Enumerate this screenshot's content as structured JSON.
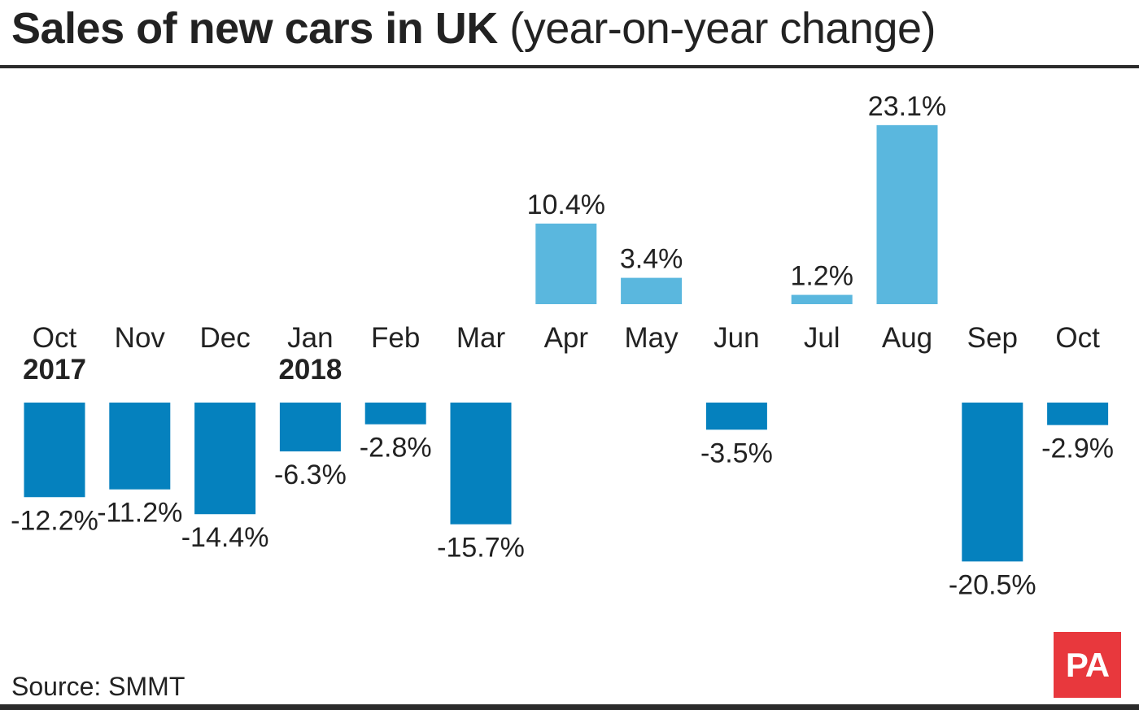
{
  "title": {
    "bold": "Sales of new cars in UK",
    "light": "(year-on-year change)"
  },
  "source": "Source: SMMT",
  "logo_text": "PA",
  "colors": {
    "positive": "#5ab7de",
    "negative": "#0581be",
    "text": "#222222",
    "logo": "#e8383d"
  },
  "chart_data": {
    "type": "bar",
    "title": "Sales of new cars in UK (year-on-year change)",
    "categories": [
      "Oct",
      "Nov",
      "Dec",
      "Jan",
      "Feb",
      "Mar",
      "Apr",
      "May",
      "Jun",
      "Jul",
      "Aug",
      "Sep",
      "Oct"
    ],
    "year_labels": [
      "2017",
      "",
      "",
      "2018",
      "",
      "",
      "",
      "",
      "",
      "",
      "",
      "",
      ""
    ],
    "values": [
      -12.2,
      -11.2,
      -14.4,
      -6.3,
      -2.8,
      -15.7,
      10.4,
      3.4,
      -3.5,
      1.2,
      23.1,
      -20.5,
      -2.9
    ],
    "data_labels": [
      "-12.2%",
      "-11.2%",
      "-14.4%",
      "-6.3%",
      "-2.8%",
      "-15.7%",
      "10.4%",
      "3.4%",
      "-3.5%",
      "1.2%",
      "23.1%",
      "-20.5%",
      "-2.9%"
    ],
    "unit": "%",
    "ylim": [
      -20.5,
      23.1
    ],
    "grid": false,
    "legend": "none"
  }
}
